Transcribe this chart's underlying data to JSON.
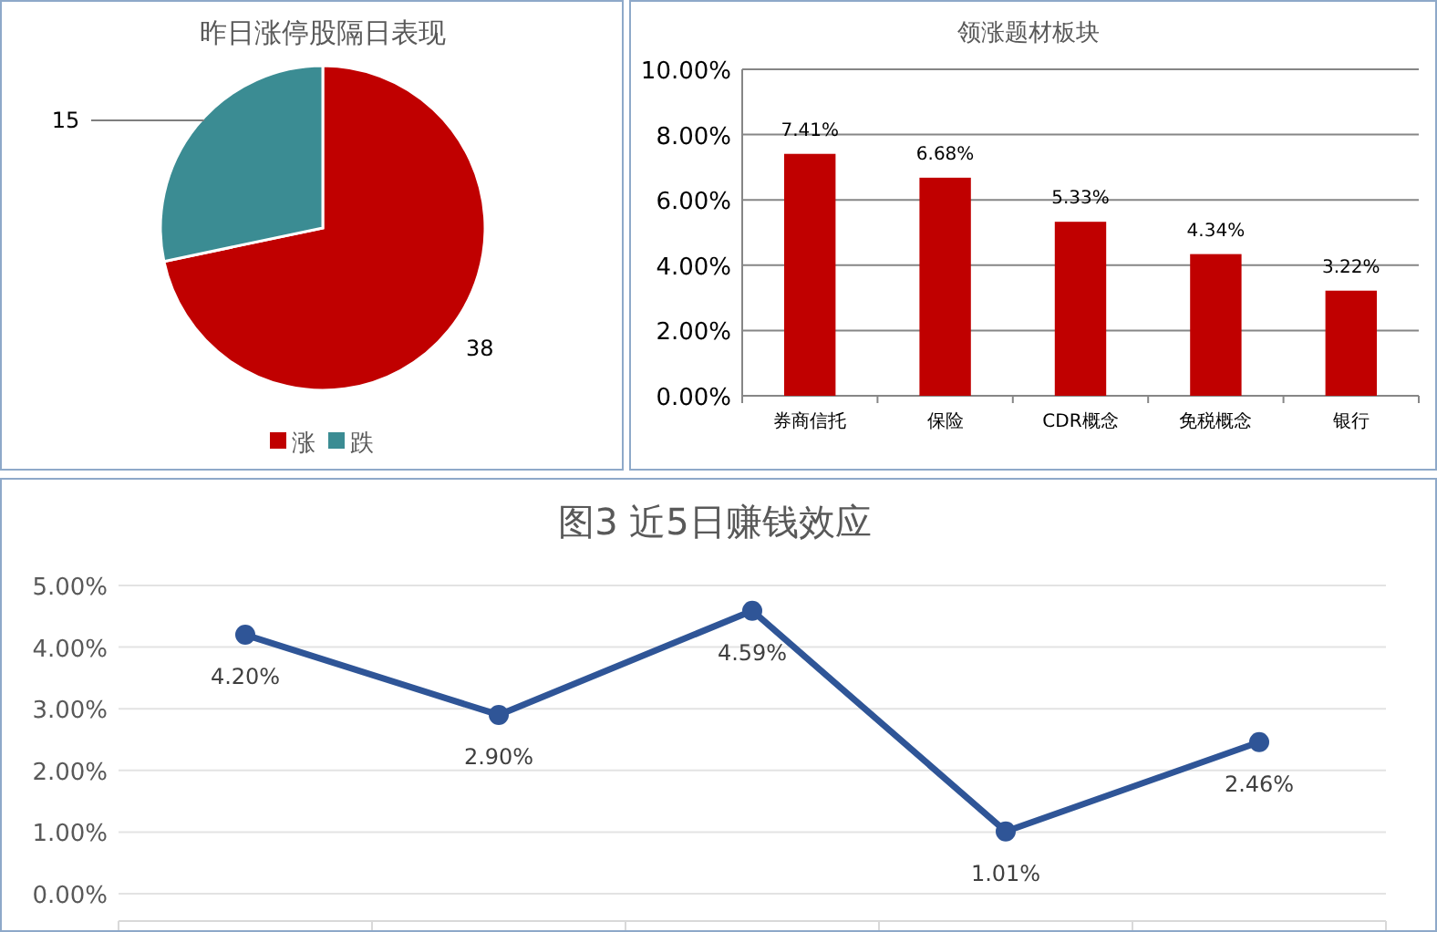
{
  "chart_data": [
    {
      "type": "pie",
      "title": "昨日涨停股隔日表现",
      "categories": [
        "涨",
        "跌"
      ],
      "values": [
        38,
        15
      ],
      "colors": [
        "#c00000",
        "#3b8c93"
      ],
      "data_labels": true,
      "legend": "bottom"
    },
    {
      "type": "bar",
      "title": "领涨题材板块",
      "categories": [
        "券商信托",
        "保险",
        "CDR概念",
        "免税概念",
        "银行"
      ],
      "values": [
        7.41,
        6.68,
        5.33,
        4.34,
        3.22
      ],
      "color": "#c00000",
      "value_labels": [
        "7.41%",
        "6.68%",
        "5.33%",
        "4.34%",
        "3.22%"
      ],
      "ylim": [
        0,
        10
      ],
      "yticks": [
        {
          "value": 0,
          "label": "0.00%"
        },
        {
          "value": 2,
          "label": "2.00%"
        },
        {
          "value": 4,
          "label": "4.00%"
        },
        {
          "value": 6,
          "label": "6.00%"
        },
        {
          "value": 8,
          "label": "8.00%"
        },
        {
          "value": 10,
          "label": "10.00%"
        }
      ],
      "grid": "y"
    },
    {
      "type": "line",
      "title": "图3 近5日赚钱效应",
      "categories": [
        null,
        null,
        null,
        null,
        null
      ],
      "values": [
        4.2,
        2.9,
        4.59,
        1.01,
        2.46
      ],
      "color": "#2f5597",
      "value_labels": [
        "4.20%",
        "2.90%",
        "4.59%",
        "1.01%",
        "2.46%"
      ],
      "marker": "circle",
      "ylim": [
        0,
        5
      ],
      "yticks": [
        {
          "value": 0,
          "label": "0.00%"
        },
        {
          "value": 1,
          "label": "1.00%"
        },
        {
          "value": 2,
          "label": "2.00%"
        },
        {
          "value": 3,
          "label": "3.00%"
        },
        {
          "value": 4,
          "label": "4.00%"
        },
        {
          "value": 5,
          "label": "5.00%"
        }
      ],
      "grid": "y"
    }
  ]
}
